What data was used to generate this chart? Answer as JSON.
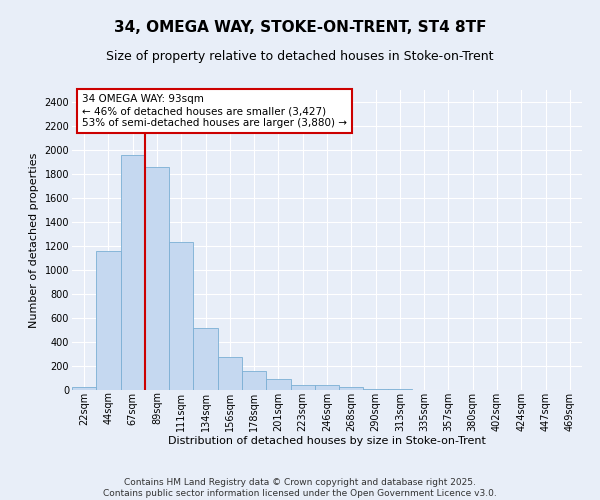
{
  "title_line1": "34, OMEGA WAY, STOKE-ON-TRENT, ST4 8TF",
  "title_line2": "Size of property relative to detached houses in Stoke-on-Trent",
  "xlabel": "Distribution of detached houses by size in Stoke-on-Trent",
  "ylabel": "Number of detached properties",
  "categories": [
    "22sqm",
    "44sqm",
    "67sqm",
    "89sqm",
    "111sqm",
    "134sqm",
    "156sqm",
    "178sqm",
    "201sqm",
    "223sqm",
    "246sqm",
    "268sqm",
    "290sqm",
    "313sqm",
    "335sqm",
    "357sqm",
    "380sqm",
    "402sqm",
    "424sqm",
    "447sqm",
    "469sqm"
  ],
  "values": [
    28,
    1160,
    1960,
    1860,
    1230,
    520,
    275,
    155,
    90,
    45,
    38,
    22,
    10,
    6,
    4,
    3,
    2,
    1,
    1,
    1,
    1
  ],
  "bar_color": "#c5d8f0",
  "bar_edge_color": "#7bafd4",
  "background_color": "#e8eef8",
  "grid_color": "#ffffff",
  "annotation_text": "34 OMEGA WAY: 93sqm\n← 46% of detached houses are smaller (3,427)\n53% of semi-detached houses are larger (3,880) →",
  "annotation_box_color": "#ffffff",
  "annotation_box_edge": "#cc0000",
  "vline_color": "#cc0000",
  "vline_pos": 2.5,
  "ylim": [
    0,
    2500
  ],
  "yticks": [
    0,
    200,
    400,
    600,
    800,
    1000,
    1200,
    1400,
    1600,
    1800,
    2000,
    2200,
    2400
  ],
  "footer_line1": "Contains HM Land Registry data © Crown copyright and database right 2025.",
  "footer_line2": "Contains public sector information licensed under the Open Government Licence v3.0.",
  "title_fontsize": 11,
  "subtitle_fontsize": 9,
  "axis_label_fontsize": 8,
  "tick_fontsize": 7,
  "annotation_fontsize": 7.5,
  "footer_fontsize": 6.5
}
